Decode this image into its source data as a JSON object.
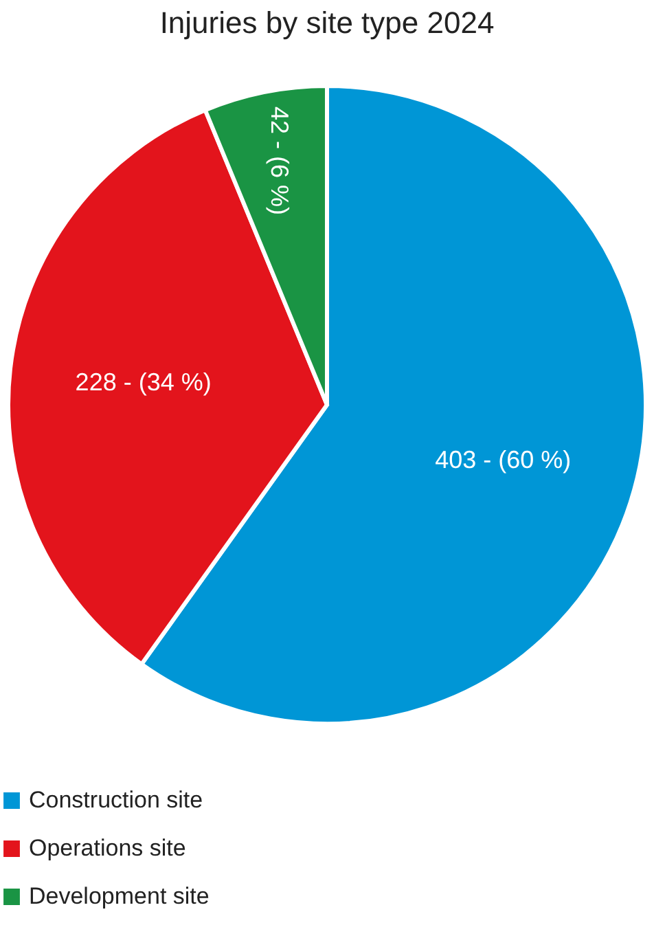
{
  "chart_data": {
    "type": "pie",
    "title": "Injuries by site type 2024",
    "categories": [
      "Construction site",
      "Operations site",
      "Development site"
    ],
    "values": [
      403,
      228,
      42
    ],
    "colors": [
      "#0096d6",
      "#e3141c",
      "#1a9444"
    ],
    "value_labels": [
      "403 - (60 %)",
      "228 - (34 %)",
      "42 - (6 %)"
    ],
    "legend": "bottom"
  }
}
